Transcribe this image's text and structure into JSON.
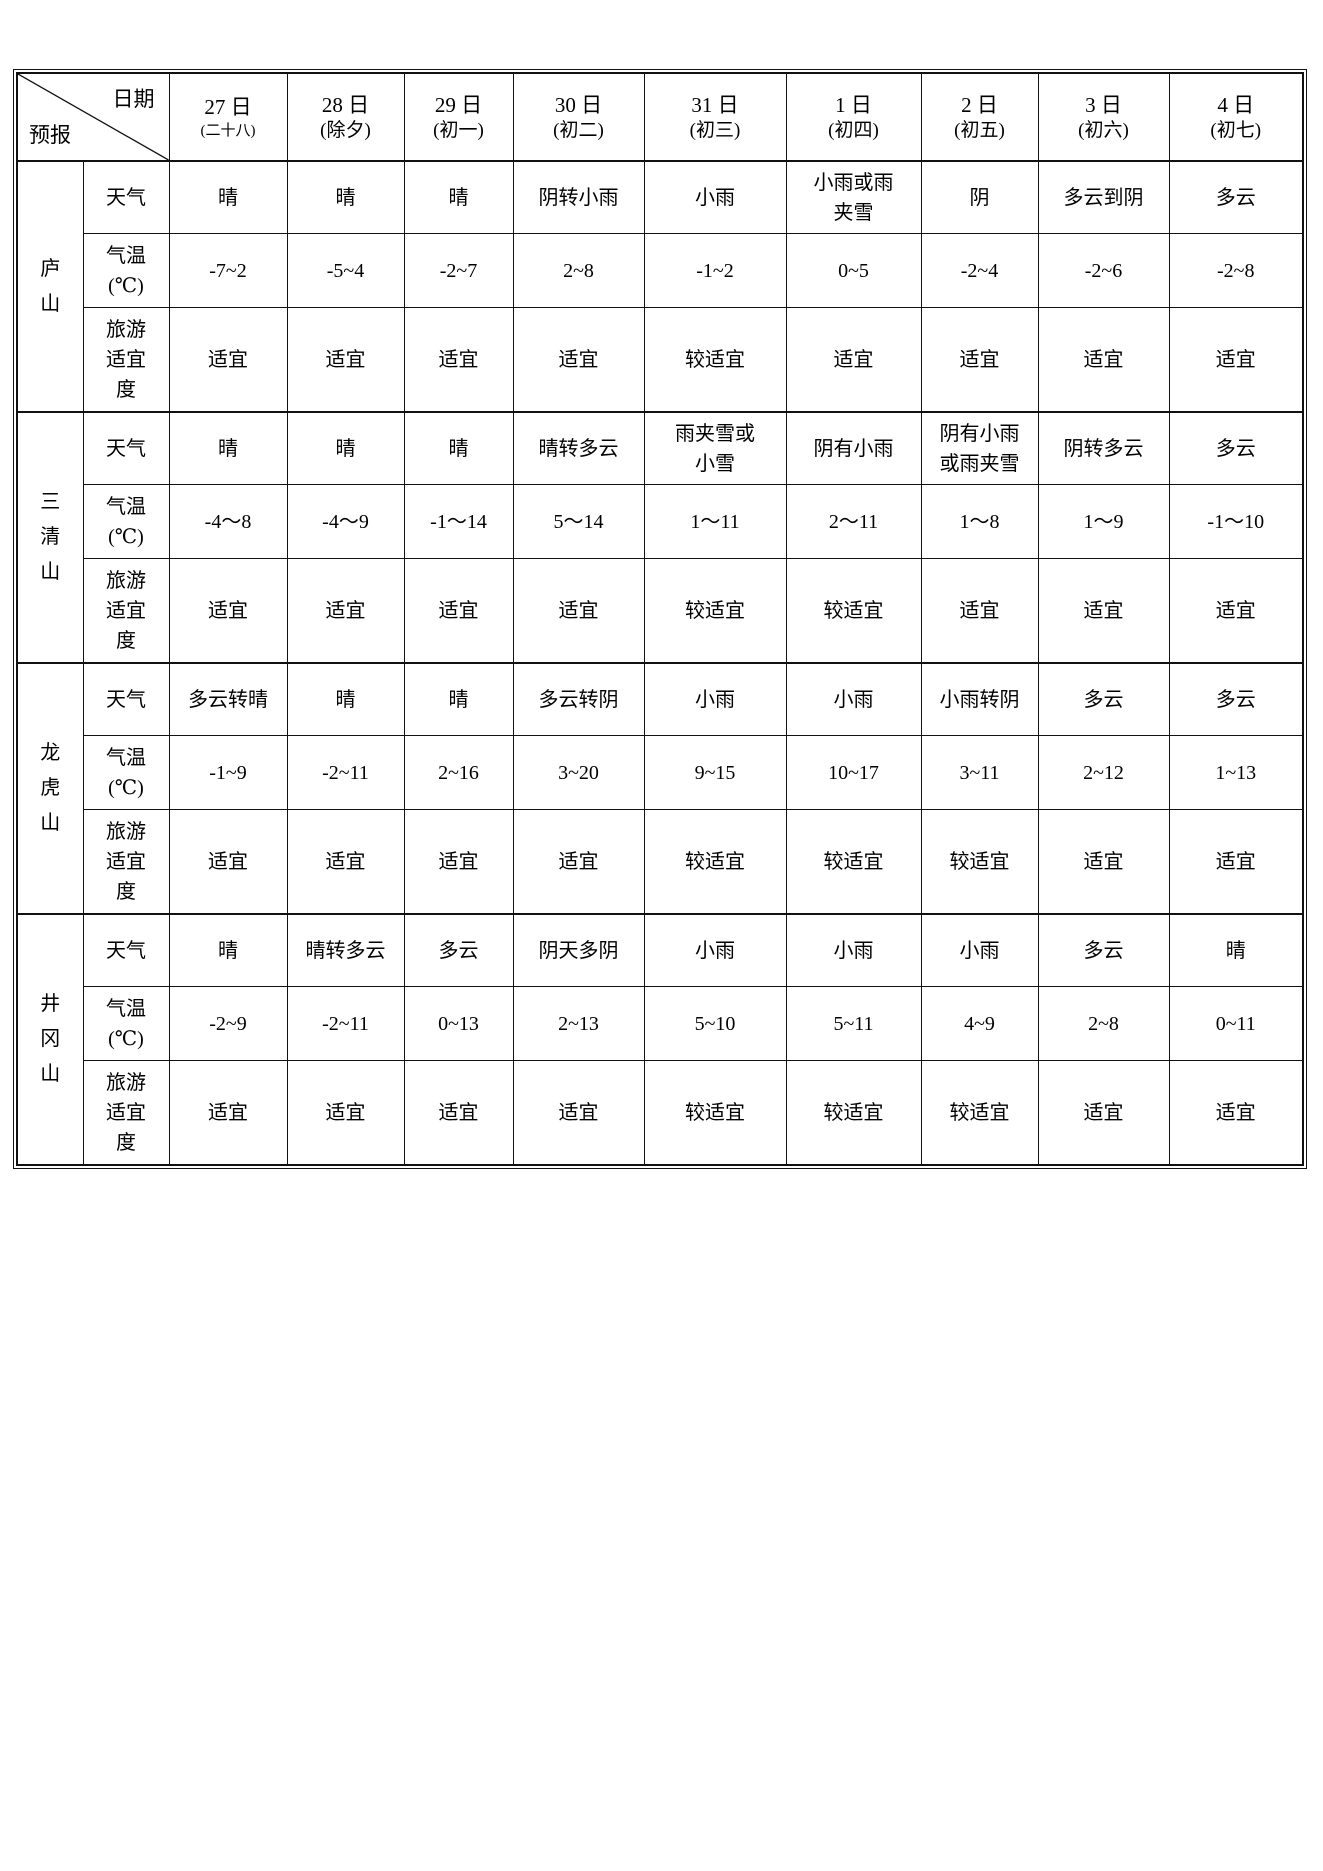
{
  "table": {
    "corner": {
      "top_right": "日期",
      "bottom_left": "预报"
    },
    "columns": [
      {
        "date": "27 日",
        "lunar": "(二十八)"
      },
      {
        "date": "28 日",
        "lunar": "(除夕)"
      },
      {
        "date": "29 日",
        "lunar": "(初一)"
      },
      {
        "date": "30 日",
        "lunar": "(初二)"
      },
      {
        "date": "31 日",
        "lunar": "(初三)"
      },
      {
        "date": "1 日",
        "lunar": "(初四)"
      },
      {
        "date": "2 日",
        "lunar": "(初五)"
      },
      {
        "date": "3 日",
        "lunar": "(初六)"
      },
      {
        "date": "4 日",
        "lunar": "(初七)"
      }
    ],
    "row_labels": {
      "weather": "天气",
      "temperature": "气温(℃)",
      "suitability": "旅游适宜度"
    },
    "groups": [
      {
        "mountain": "庐山",
        "weather": [
          "晴",
          "晴",
          "晴",
          "阴转小雨",
          "小雨",
          "小雨或雨夹雪",
          "阴",
          "多云到阴",
          "多云"
        ],
        "temperature": [
          "-7~2",
          "-5~4",
          "-2~7",
          "2~8",
          "-1~2",
          "0~5",
          "-2~4",
          "-2~6",
          "-2~8"
        ],
        "suitability": [
          "适宜",
          "适宜",
          "适宜",
          "适宜",
          "较适宜",
          "适宜",
          "适宜",
          "适宜",
          "适宜"
        ]
      },
      {
        "mountain": "三清山",
        "weather": [
          "晴",
          "晴",
          "晴",
          "晴转多云",
          "雨夹雪或小雪",
          "阴有小雨",
          "阴有小雨或雨夹雪",
          "阴转多云",
          "多云"
        ],
        "temperature": [
          "-4～8",
          "-4～9",
          "-1～14",
          "5～14",
          "1～11",
          "2～11",
          "1～8",
          "1～9",
          "-1～10"
        ],
        "suitability": [
          "适宜",
          "适宜",
          "适宜",
          "适宜",
          "较适宜",
          "较适宜",
          "适宜",
          "适宜",
          "适宜"
        ]
      },
      {
        "mountain": "龙虎山",
        "weather": [
          "多云转晴",
          "晴",
          "晴",
          "多云转阴",
          "小雨",
          "小雨",
          "小雨转阴",
          "多云",
          "多云"
        ],
        "temperature": [
          "-1~9",
          "-2~11",
          "2~16",
          "3~20",
          "9~15",
          "10~17",
          "3~11",
          "2~12",
          "1~13"
        ],
        "suitability": [
          "适宜",
          "适宜",
          "适宜",
          "适宜",
          "较适宜",
          "较适宜",
          "较适宜",
          "适宜",
          "适宜"
        ]
      },
      {
        "mountain": "井冈山",
        "weather": [
          "晴",
          "晴转多云",
          "多云",
          "阴天多阴",
          "小雨",
          "小雨",
          "小雨",
          "多云",
          "晴"
        ],
        "temperature": [
          "-2~9",
          "-2~11",
          "0~13",
          "2~13",
          "5~10",
          "5~11",
          "4~9",
          "2~8",
          "0~11"
        ],
        "suitability": [
          "适宜",
          "适宜",
          "适宜",
          "适宜",
          "较适宜",
          "较适宜",
          "较适宜",
          "适宜",
          "适宜"
        ]
      }
    ]
  }
}
